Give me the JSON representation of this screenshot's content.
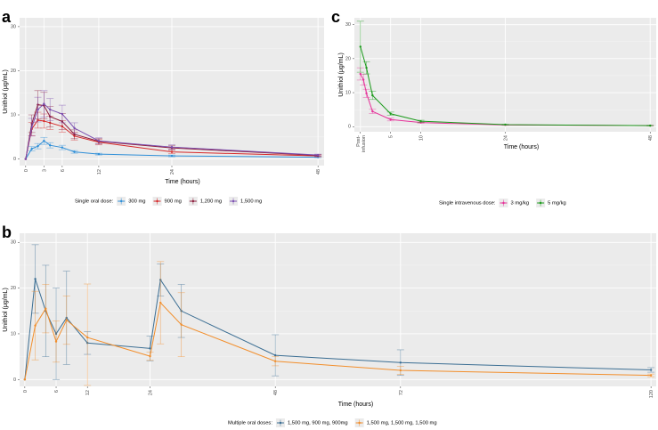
{
  "chart_data": [
    {
      "panel": "a",
      "type": "line",
      "xlabel": "Time (hours)",
      "ylabel": "Unithiol (μg/mL)",
      "xlim": [
        -1,
        49
      ],
      "ylim": [
        -1.5,
        32
      ],
      "xticks": [
        0,
        3,
        6,
        12,
        24,
        48
      ],
      "xtick_labels": [
        "0",
        "3",
        "6",
        "12",
        "24",
        "48"
      ],
      "yticks": [
        0,
        10,
        20,
        30
      ],
      "ytick_labels": [
        "0",
        "10",
        "20",
        "30"
      ],
      "legend_title": "Single oral dose:",
      "legend_position": "bottom",
      "series": [
        {
          "name": "300 mg",
          "color": "#2f8fd8",
          "x": [
            0,
            1,
            2,
            3,
            4,
            6,
            8,
            12,
            24,
            48
          ],
          "y": [
            0,
            2.3,
            2.9,
            4.1,
            3.1,
            2.6,
            1.6,
            1.1,
            0.7,
            0.4
          ],
          "err": [
            0,
            0.5,
            0.6,
            0.8,
            0.6,
            0.5,
            0.3,
            0.2,
            0.2,
            0.1
          ]
        },
        {
          "name": "900 mg",
          "color": "#d62728",
          "x": [
            0,
            1,
            2,
            3,
            4,
            6,
            8,
            12,
            24,
            48
          ],
          "y": [
            0,
            6.8,
            8.8,
            8.6,
            8.2,
            7.4,
            5.2,
            3.8,
            1.6,
            0.7
          ],
          "err": [
            0,
            1.5,
            1.8,
            1.6,
            1.5,
            1.3,
            0.9,
            0.6,
            0.4,
            0.2
          ]
        },
        {
          "name": "1,200 mg",
          "color": "#8b1a3a",
          "x": [
            0,
            1,
            2,
            3,
            4,
            6,
            8,
            12,
            24,
            48
          ],
          "y": [
            0,
            8.0,
            12.3,
            12.1,
            9.6,
            8.5,
            5.6,
            4.0,
            2.5,
            0.8
          ],
          "err": [
            0,
            2.0,
            3.2,
            3.0,
            2.3,
            1.8,
            1.0,
            0.6,
            0.5,
            0.2
          ]
        },
        {
          "name": "1,500 mg",
          "color": "#7b4fb0",
          "x": [
            0,
            1,
            2,
            3,
            4,
            6,
            8,
            12,
            24,
            48
          ],
          "y": [
            0,
            7.2,
            11.2,
            12.5,
            11.2,
            10.2,
            7.0,
            4.1,
            2.7,
            0.9
          ],
          "err": [
            0,
            2.0,
            2.8,
            3.0,
            2.5,
            2.0,
            1.2,
            0.7,
            0.5,
            0.2
          ]
        }
      ]
    },
    {
      "panel": "c",
      "type": "line",
      "xlabel": "Time (hours)",
      "ylabel": "Unithiol (μg/mL)",
      "xlim": [
        -1,
        49
      ],
      "ylim": [
        -1.5,
        32
      ],
      "xticks": [
        0,
        5,
        10,
        24,
        48
      ],
      "xtick_labels": [
        "Post-\ninfusion",
        "5",
        "10",
        "24",
        "48"
      ],
      "yticks": [
        0,
        10,
        20,
        30
      ],
      "ytick_labels": [
        "0",
        "10",
        "20",
        "30"
      ],
      "legend_title": "Single intravenous dose:",
      "legend_position": "bottom",
      "series": [
        {
          "name": "3 mg/kg",
          "color": "#e6339a",
          "x": [
            0,
            0.5,
            1,
            2,
            5,
            10,
            24,
            48
          ],
          "y": [
            15.5,
            13.8,
            9.8,
            4.5,
            2.1,
            1.2,
            0.5,
            0.3
          ],
          "err": [
            1.8,
            1.6,
            1.2,
            0.6,
            0.4,
            0.2,
            0.1,
            0.1
          ]
        },
        {
          "name": "5 mg/kg",
          "color": "#1a9a1a",
          "x": [
            0,
            1,
            2,
            5,
            10,
            24,
            48
          ],
          "y": [
            23.5,
            17.3,
            9.2,
            3.8,
            1.6,
            0.6,
            0.3
          ],
          "err": [
            7.5,
            1.8,
            1.2,
            0.5,
            0.3,
            0.1,
            0.1
          ]
        }
      ]
    },
    {
      "panel": "b",
      "type": "line",
      "xlabel": "Time (hours)",
      "ylabel": "Unithiol (μg/mL)",
      "xlim": [
        -1,
        121
      ],
      "ylim": [
        -1.5,
        32
      ],
      "xticks": [
        0,
        6,
        12,
        24,
        48,
        72,
        120
      ],
      "xtick_labels": [
        "0",
        "6",
        "12",
        "24",
        "48",
        "72",
        "120"
      ],
      "yticks": [
        0,
        10,
        20,
        30
      ],
      "ytick_labels": [
        "0",
        "10",
        "20",
        "30"
      ],
      "legend_title": "Multiple oral doses:",
      "legend_position": "bottom",
      "series": [
        {
          "name": "1,500 mg, 900 mg, 900mg",
          "color": "#3b6e93",
          "x": [
            0,
            2,
            4,
            6,
            8,
            12,
            24,
            26,
            30,
            48,
            72,
            120
          ],
          "y": [
            0,
            22.0,
            15.0,
            10.0,
            13.5,
            8.0,
            6.8,
            21.8,
            15.0,
            5.3,
            3.7,
            2.1
          ],
          "err": [
            0,
            7.5,
            10.0,
            10.0,
            10.2,
            2.5,
            2.7,
            3.5,
            5.8,
            4.5,
            2.8,
            0.5
          ]
        },
        {
          "name": "1,500 mg, 1,500 mg, 1,500 mg",
          "color": "#f28e2b",
          "x": [
            0,
            2,
            4,
            6,
            8,
            12,
            24,
            26,
            30,
            48,
            72,
            120
          ],
          "y": [
            0,
            11.8,
            15.5,
            8.3,
            13.0,
            9.2,
            5.1,
            16.8,
            12.0,
            4.0,
            2.0,
            0.9
          ],
          "err": [
            0,
            7.5,
            5.3,
            4.5,
            5.3,
            11.7,
            0.9,
            9.0,
            7.0,
            1.0,
            0.9,
            0.3
          ]
        }
      ]
    }
  ],
  "panels": {
    "a": {
      "letter": "a"
    },
    "b": {
      "letter": "b"
    },
    "c": {
      "letter": "c"
    }
  }
}
